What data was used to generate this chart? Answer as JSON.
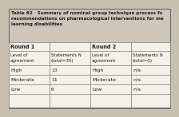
{
  "title_line1": "Table 62   Summary of nominal group technique process for",
  "title": "Table 62   Summary of nominal group technique process fo",
  "title2": "recommendations on pharmacological interventions for me",
  "title3": "learning disabilities",
  "round1_label": "Round 1",
  "round2_label": "Round 2",
  "sub_headers": [
    [
      "Level of",
      "agreement"
    ],
    [
      "Statements N",
      "(total=30)"
    ],
    [
      "Level of",
      "agreement"
    ],
    [
      "Statements N",
      "(total=0)"
    ]
  ],
  "rows": [
    [
      "High",
      "13",
      "High",
      "n/a"
    ],
    [
      "Moderate",
      "11",
      "Moderate",
      "n/a"
    ],
    [
      "Low",
      "6",
      "Low",
      "n/a"
    ]
  ],
  "outer_bg": "#c8c0b0",
  "title_bg": "#cec6b8",
  "table_bg": "#f5f0e8",
  "cell_bg": "#ffffff",
  "border_color": "#888880",
  "text_color": "#1a1a1a"
}
